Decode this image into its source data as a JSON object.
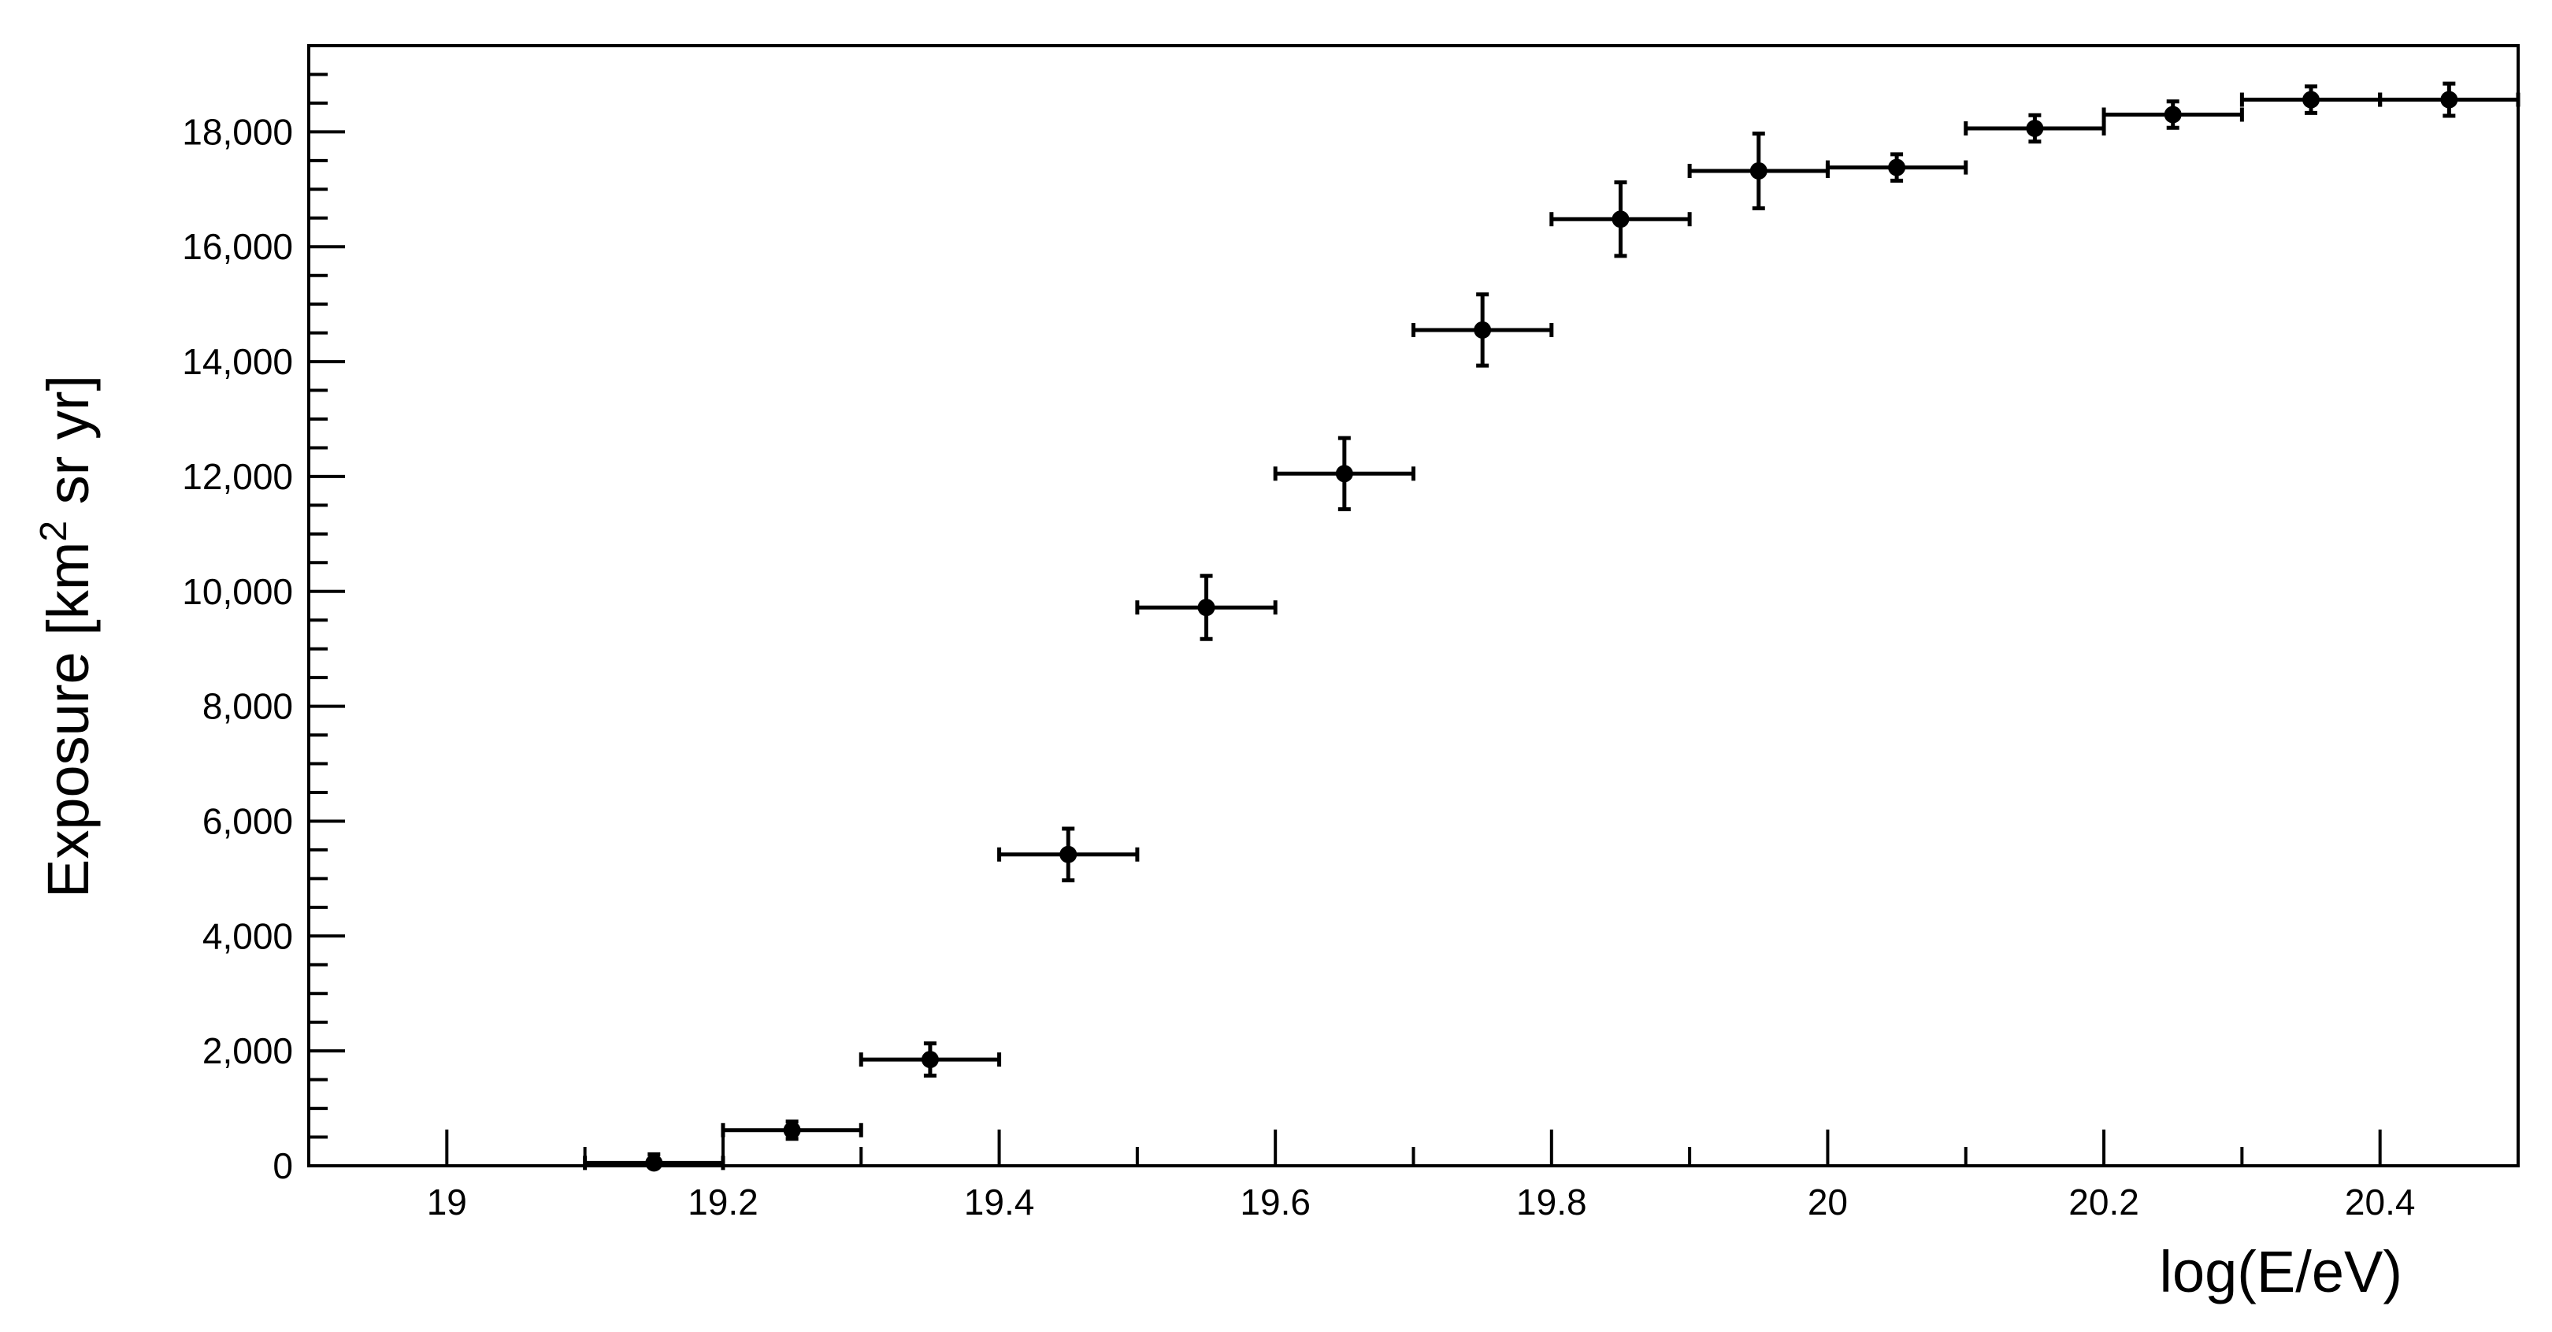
{
  "chart_data": {
    "type": "scatter",
    "title": "",
    "xlabel": "log(E/eV)",
    "ylabel": {
      "main": "Exposure  [km",
      "superscript": "2",
      "rest": " sr yr]"
    },
    "xlim": [
      18.9,
      20.5
    ],
    "ylim": [
      0,
      19500
    ],
    "x_major_ticks": [
      19,
      19.2,
      19.4,
      19.6,
      19.8,
      20,
      20.2,
      20.4
    ],
    "x_tick_labels": [
      "19",
      "19.2",
      "19.4",
      "19.6",
      "19.8",
      "20",
      "20.2",
      "20.4"
    ],
    "y_major_ticks": [
      0,
      2000,
      4000,
      6000,
      8000,
      10000,
      12000,
      14000,
      16000,
      18000
    ],
    "y_tick_labels": [
      "0",
      "2,000",
      "4,000",
      "6,000",
      "8,000",
      "10,000",
      "12,000",
      "14,000",
      "16,000",
      "18,000"
    ],
    "grid": false,
    "color": "#000000",
    "series": [
      {
        "points": [
          {
            "x": 19.15,
            "y": 50,
            "x_err": 0.05,
            "y_err": 150
          },
          {
            "x": 19.25,
            "y": 620,
            "x_err": 0.05,
            "y_err": 150
          },
          {
            "x": 19.35,
            "y": 1850,
            "x_err": 0.05,
            "y_err": 280
          },
          {
            "x": 19.45,
            "y": 5420,
            "x_err": 0.05,
            "y_err": 450
          },
          {
            "x": 19.55,
            "y": 9720,
            "x_err": 0.05,
            "y_err": 550
          },
          {
            "x": 19.65,
            "y": 12050,
            "x_err": 0.05,
            "y_err": 620
          },
          {
            "x": 19.75,
            "y": 14550,
            "x_err": 0.05,
            "y_err": 620
          },
          {
            "x": 19.85,
            "y": 16480,
            "x_err": 0.05,
            "y_err": 640
          },
          {
            "x": 19.95,
            "y": 17320,
            "x_err": 0.05,
            "y_err": 650
          },
          {
            "x": 20.05,
            "y": 17380,
            "x_err": 0.05,
            "y_err": 230
          },
          {
            "x": 20.15,
            "y": 18060,
            "x_err": 0.05,
            "y_err": 230
          },
          {
            "x": 20.25,
            "y": 18300,
            "x_err": 0.05,
            "y_err": 230
          },
          {
            "x": 20.35,
            "y": 18560,
            "x_err": 0.05,
            "y_err": 230
          },
          {
            "x": 20.45,
            "y": 18560,
            "x_err": 0.05,
            "y_err": 280
          }
        ]
      }
    ]
  }
}
